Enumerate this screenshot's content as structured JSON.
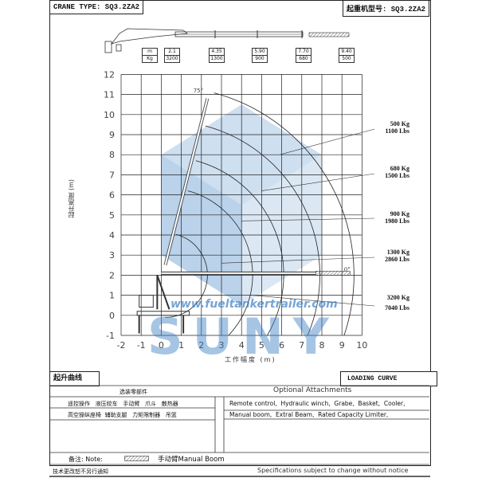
{
  "header": {
    "left_title": "CRANE TYPE: SQ3.2ZA2",
    "right_title": "起重机型号: SQ3.2ZA2"
  },
  "spec_table": {
    "units": [
      "m",
      "Kg"
    ],
    "columns": [
      {
        "reach": "2.1",
        "load": "3200"
      },
      {
        "reach": "4.35",
        "load": "1300"
      },
      {
        "reach": "5.90",
        "load": "900"
      },
      {
        "reach": "7.70",
        "load": "680"
      },
      {
        "reach": "9.40",
        "load": "500"
      }
    ]
  },
  "chart": {
    "xlabel": "工作幅度 (m)",
    "ylabel": "起升高度 (m)",
    "x_ticks": [
      "-2",
      "-1",
      "0",
      "1",
      "2",
      "3",
      "4",
      "5",
      "6",
      "7",
      "8",
      "9",
      "10"
    ],
    "y_ticks": [
      "12",
      "11",
      "10",
      "9",
      "8",
      "7",
      "6",
      "5",
      "4",
      "3",
      "2",
      "1",
      "0",
      "-1"
    ],
    "xlim": [
      -2,
      10
    ],
    "ylim": [
      -1,
      12
    ],
    "boom_angle_top": "75°",
    "boom_angle_bottom": "0°",
    "load_labels": [
      {
        "kg": "500 Kg",
        "lbs": "1100 Lbs"
      },
      {
        "kg": "680 Kg",
        "lbs": "1500 Lbs"
      },
      {
        "kg": "900 Kg",
        "lbs": "1980 Lbs"
      },
      {
        "kg": "1300 Kg",
        "lbs": "2860 Lbs"
      },
      {
        "kg": "3200 Kg",
        "lbs": "7040 Lbs"
      }
    ],
    "load_radii_m": [
      9.4,
      7.7,
      5.9,
      4.35,
      2.1
    ]
  },
  "watermark": {
    "url": "www.fueltankertrailer.com",
    "brand": "SUNY",
    "color": "#3a7fc4"
  },
  "footer_titles": {
    "left": "起升曲线",
    "right": "LOADING CURVE"
  },
  "attachments": {
    "cn_title": "选装零部件",
    "en_title": "Optional Attachments",
    "cn_rows": [
      "遥控操作   液压绞车   手动臂   爪斗   散热器",
      "高空操纵座椅  辅助支腿   力矩限制器   吊篮"
    ],
    "en_rows": [
      "Remote control,  Hydraulic winch,  Grabe,  Basket,  Cooler,",
      "Manual boom,  Extral Beam,  Rated Capacity Limiter,"
    ]
  },
  "note": {
    "label": "备注: Note:",
    "text": "手动臂Manual Boom"
  },
  "bottom": {
    "left": "技术更改恕不另行通知",
    "right": "Specifications subject to change without notice"
  }
}
